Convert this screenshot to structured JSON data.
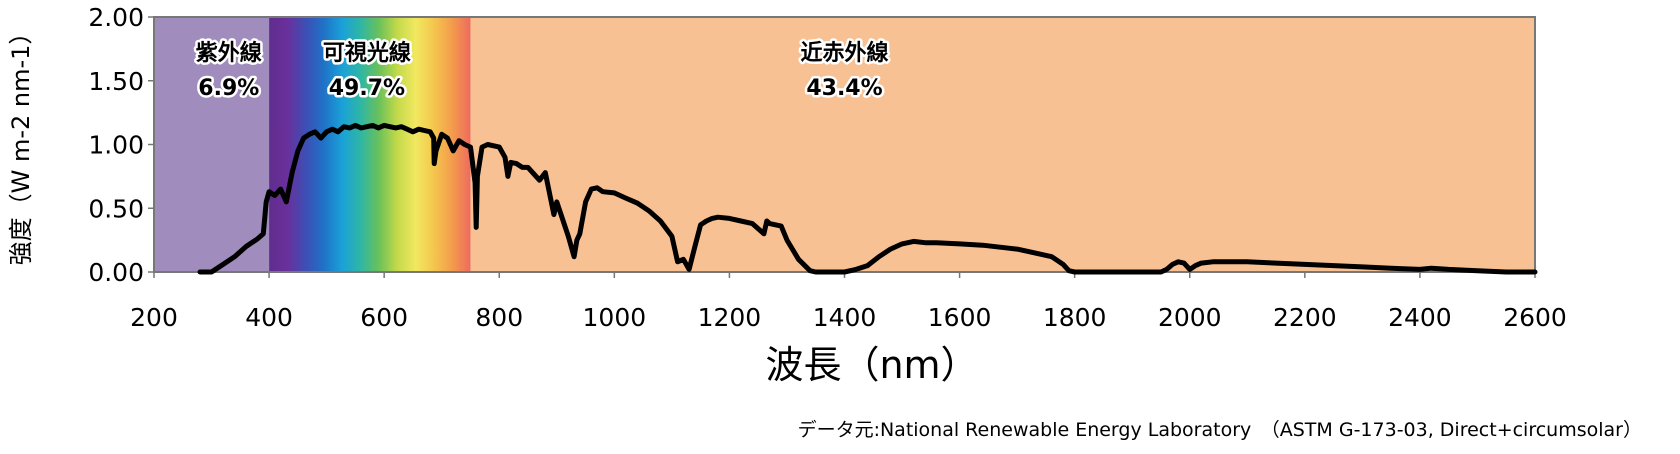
{
  "chart_data": {
    "type": "line",
    "title": "",
    "xlabel": "波長（nm）",
    "ylabel": "強度（W m-2 nm-1）",
    "xlim": [
      200,
      2600
    ],
    "ylim": [
      0,
      2.0
    ],
    "x_ticks": [
      "200",
      "400",
      "600",
      "800",
      "1000",
      "1200",
      "1400",
      "1600",
      "1800",
      "2000",
      "2200",
      "2400",
      "2600"
    ],
    "y_ticks": [
      "0.00",
      "0.50",
      "1.00",
      "1.50",
      "2.00"
    ],
    "regions": [
      {
        "name": "紫外線",
        "percent": "6.9%",
        "from": 280,
        "to": 400,
        "color": "#a08cbd"
      },
      {
        "name": "可視光線",
        "percent": "49.7%",
        "from": 400,
        "to": 750,
        "color": "spectrum"
      },
      {
        "name": "近赤外線",
        "percent": "43.4%",
        "from": 750,
        "to": 2600,
        "color": "#f8c194"
      }
    ],
    "spectrum_colors": [
      "#5f2e8d",
      "#6a2f9c",
      "#3d4fb5",
      "#1f73c7",
      "#1aa1d8",
      "#2fb6a5",
      "#6ac15a",
      "#c3d94a",
      "#f1e860",
      "#f5c64e",
      "#f39c4c",
      "#ee6b5f"
    ],
    "series": [
      {
        "name": "ASTM G-173-03 Direct+circumsolar",
        "color": "#000000",
        "x": [
          280,
          300,
          320,
          340,
          360,
          380,
          390,
          395,
          400,
          410,
          420,
          430,
          440,
          450,
          460,
          470,
          480,
          490,
          500,
          510,
          520,
          530,
          540,
          550,
          560,
          570,
          580,
          590,
          600,
          610,
          620,
          630,
          640,
          650,
          660,
          670,
          680,
          686,
          687,
          690,
          700,
          710,
          720,
          730,
          740,
          750,
          758,
          760,
          762,
          770,
          780,
          800,
          810,
          815,
          820,
          830,
          840,
          850,
          870,
          880,
          895,
          900,
          920,
          930,
          935,
          940,
          950,
          960,
          970,
          980,
          1000,
          1020,
          1040,
          1060,
          1080,
          1100,
          1110,
          1120,
          1130,
          1140,
          1150,
          1160,
          1170,
          1180,
          1200,
          1220,
          1240,
          1260,
          1265,
          1270,
          1290,
          1300,
          1320,
          1340,
          1350,
          1360,
          1380,
          1400,
          1420,
          1440,
          1460,
          1480,
          1500,
          1520,
          1540,
          1560,
          1600,
          1640,
          1680,
          1700,
          1720,
          1760,
          1780,
          1790,
          1800,
          1810,
          1850,
          1900,
          1950,
          1960,
          1970,
          1980,
          1990,
          2000,
          2010,
          2020,
          2040,
          2060,
          2100,
          2150,
          2200,
          2250,
          2300,
          2350,
          2400,
          2420,
          2450,
          2500,
          2550,
          2600
        ],
        "values": [
          0.0,
          0.0,
          0.06,
          0.12,
          0.2,
          0.26,
          0.3,
          0.55,
          0.63,
          0.6,
          0.65,
          0.55,
          0.78,
          0.95,
          1.05,
          1.08,
          1.1,
          1.05,
          1.1,
          1.12,
          1.1,
          1.14,
          1.13,
          1.15,
          1.13,
          1.14,
          1.15,
          1.13,
          1.15,
          1.14,
          1.13,
          1.14,
          1.12,
          1.1,
          1.12,
          1.11,
          1.1,
          1.05,
          0.85,
          0.95,
          1.08,
          1.05,
          0.95,
          1.03,
          1.0,
          0.98,
          0.7,
          0.35,
          0.75,
          0.98,
          1.0,
          0.98,
          0.9,
          0.75,
          0.86,
          0.85,
          0.82,
          0.82,
          0.72,
          0.78,
          0.45,
          0.55,
          0.28,
          0.12,
          0.25,
          0.3,
          0.55,
          0.65,
          0.66,
          0.63,
          0.62,
          0.58,
          0.54,
          0.48,
          0.4,
          0.28,
          0.08,
          0.1,
          0.02,
          0.2,
          0.37,
          0.4,
          0.42,
          0.43,
          0.42,
          0.4,
          0.38,
          0.3,
          0.4,
          0.38,
          0.36,
          0.25,
          0.1,
          0.01,
          0.0,
          0.0,
          0.0,
          0.0,
          0.02,
          0.05,
          0.12,
          0.18,
          0.22,
          0.24,
          0.23,
          0.23,
          0.22,
          0.21,
          0.19,
          0.18,
          0.16,
          0.12,
          0.06,
          0.01,
          0.0,
          0.0,
          0.0,
          0.0,
          0.0,
          0.02,
          0.06,
          0.08,
          0.07,
          0.02,
          0.05,
          0.07,
          0.08,
          0.08,
          0.08,
          0.07,
          0.06,
          0.05,
          0.04,
          0.03,
          0.02,
          0.03,
          0.02,
          0.01,
          0.0,
          0.0
        ]
      }
    ],
    "source_note": "データ元:National Renewable Energy Laboratory　（ASTM G-173-03, Direct+circumsolar）",
    "colors": {
      "ultraviolet": "#a08cbd",
      "near_infrared": "#f8c194",
      "line": "#000000",
      "frame": "#777777"
    }
  }
}
